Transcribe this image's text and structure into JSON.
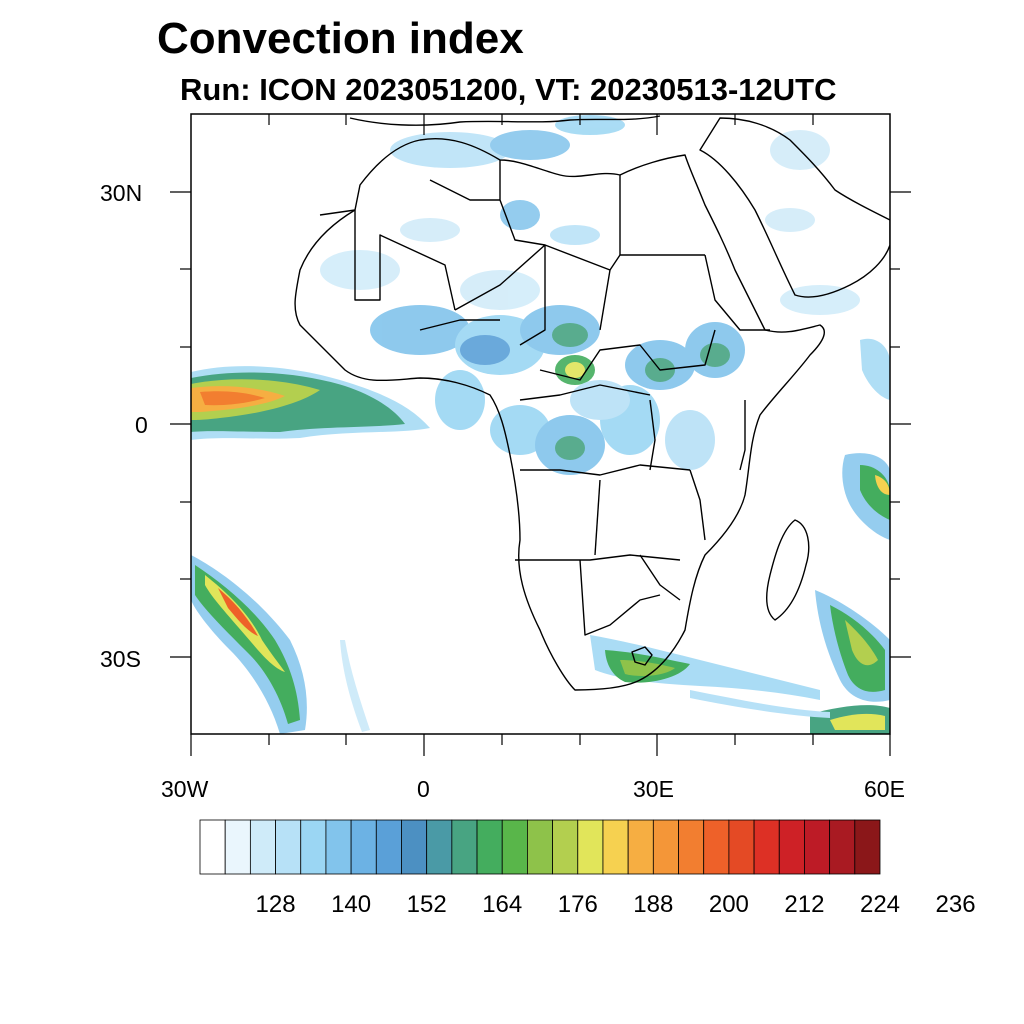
{
  "title": "Convection index",
  "subtitle": "Run: ICON 2023051200,  VT: 20230513-12UTC",
  "map": {
    "lon_range": [
      -30,
      60
    ],
    "lat_range": [
      -40,
      40
    ],
    "lon_tick_labels": [
      "30W",
      "0",
      "30E",
      "60E"
    ],
    "lat_tick_labels": [
      "30N",
      "0",
      "30S"
    ],
    "colors": {
      "land_border": "#000000",
      "background": "#ffffff"
    }
  },
  "colorbar": {
    "tick_labels": [
      "128",
      "140",
      "152",
      "164",
      "176",
      "188",
      "200",
      "212",
      "224",
      "236"
    ],
    "colors": [
      "#ffffff",
      "#eaf6fd",
      "#cfebf9",
      "#b7e1f7",
      "#9bd6f3",
      "#82c4ec",
      "#6cb2e4",
      "#5aa0d8",
      "#4c90c2",
      "#4a9aa6",
      "#48a482",
      "#44ad5e",
      "#59b64a",
      "#8ec24a",
      "#b3cf4f",
      "#e1e55a",
      "#f6d150",
      "#f6ae42",
      "#f49638",
      "#f27e30",
      "#ee6129",
      "#e44a25",
      "#dd3025",
      "#ce2126",
      "#bd1b26",
      "#a91a22",
      "#8b1719"
    ]
  }
}
